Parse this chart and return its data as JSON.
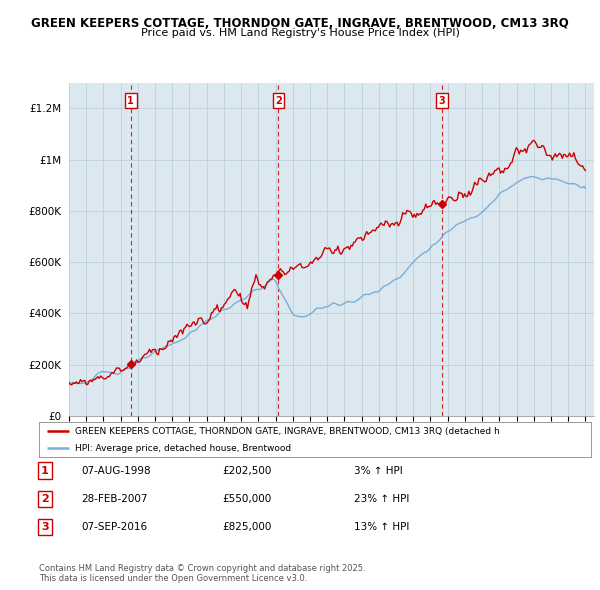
{
  "title1": "GREEN KEEPERS COTTAGE, THORNDON GATE, INGRAVE, BRENTWOOD, CM13 3RQ",
  "title2": "Price paid vs. HM Land Registry's House Price Index (HPI)",
  "ylim": [
    0,
    1300000
  ],
  "yticks": [
    0,
    200000,
    400000,
    600000,
    800000,
    1000000,
    1200000
  ],
  "ytick_labels": [
    "£0",
    "£200K",
    "£400K",
    "£600K",
    "£800K",
    "£1M",
    "£1.2M"
  ],
  "x_start_year": 1995,
  "x_end_year": 2025,
  "sale_color": "#cc0000",
  "hpi_color": "#7aaed6",
  "bg_color": "#dce8f0",
  "grid_color": "#b8cdd8",
  "vline_color": "#cc0000",
  "transactions": [
    {
      "label": "1",
      "date": 1998.59,
      "price": 202500
    },
    {
      "label": "2",
      "date": 2007.16,
      "price": 550000
    },
    {
      "label": "3",
      "date": 2016.68,
      "price": 825000
    }
  ],
  "legend_sale_text": "GREEN KEEPERS COTTAGE, THORNDON GATE, INGRAVE, BRENTWOOD, CM13 3RQ (detached h",
  "legend_hpi_text": "HPI: Average price, detached house, Brentwood",
  "table_rows": [
    {
      "num": "1",
      "date": "07-AUG-1998",
      "price": "£202,500",
      "change": "3% ↑ HPI"
    },
    {
      "num": "2",
      "date": "28-FEB-2007",
      "price": "£550,000",
      "change": "23% ↑ HPI"
    },
    {
      "num": "3",
      "date": "07-SEP-2016",
      "price": "£825,000",
      "change": "13% ↑ HPI"
    }
  ],
  "footer": "Contains HM Land Registry data © Crown copyright and database right 2025.\nThis data is licensed under the Open Government Licence v3.0."
}
